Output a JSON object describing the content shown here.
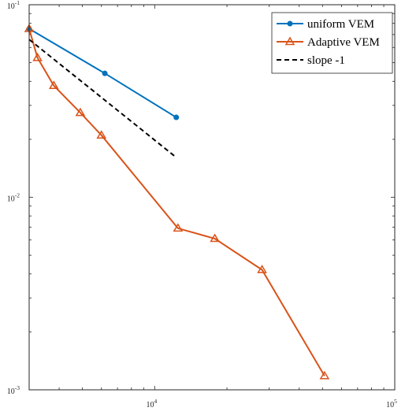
{
  "chart_data": {
    "type": "line",
    "xscale": "log",
    "yscale": "log",
    "xlim": [
      3000,
      100000
    ],
    "ylim": [
      0.001,
      0.1
    ],
    "grid": false,
    "legend_position": "top-right",
    "x_tick_labels": [
      {
        "value": 10000,
        "base": "10",
        "exp": "4"
      },
      {
        "value": 100000,
        "base": "10",
        "exp": "5"
      }
    ],
    "y_tick_labels": [
      {
        "value": 0.1,
        "base": "10",
        "exp": "-1"
      },
      {
        "value": 0.01,
        "base": "10",
        "exp": "-2"
      },
      {
        "value": 0.001,
        "base": "10",
        "exp": "-3"
      }
    ],
    "series": [
      {
        "name": "uniform VEM",
        "color": "#0072BD",
        "marker": "circle",
        "style": "solid",
        "x": [
          3000,
          6200,
          12300
        ],
        "y": [
          0.075,
          0.044,
          0.026
        ]
      },
      {
        "name": "Adaptive VEM",
        "color": "#D95319",
        "marker": "triangle",
        "style": "solid",
        "x": [
          3000,
          3250,
          3800,
          4900,
          6000,
          12500,
          17800,
          28000,
          51000
        ],
        "y": [
          0.075,
          0.053,
          0.038,
          0.0275,
          0.021,
          0.0069,
          0.0061,
          0.0042,
          0.00118
        ]
      },
      {
        "name": "slope -1",
        "color": "#000000",
        "marker": "none",
        "style": "dashed",
        "x": [
          3000,
          12300
        ],
        "y": [
          0.066,
          0.0161
        ]
      }
    ]
  }
}
